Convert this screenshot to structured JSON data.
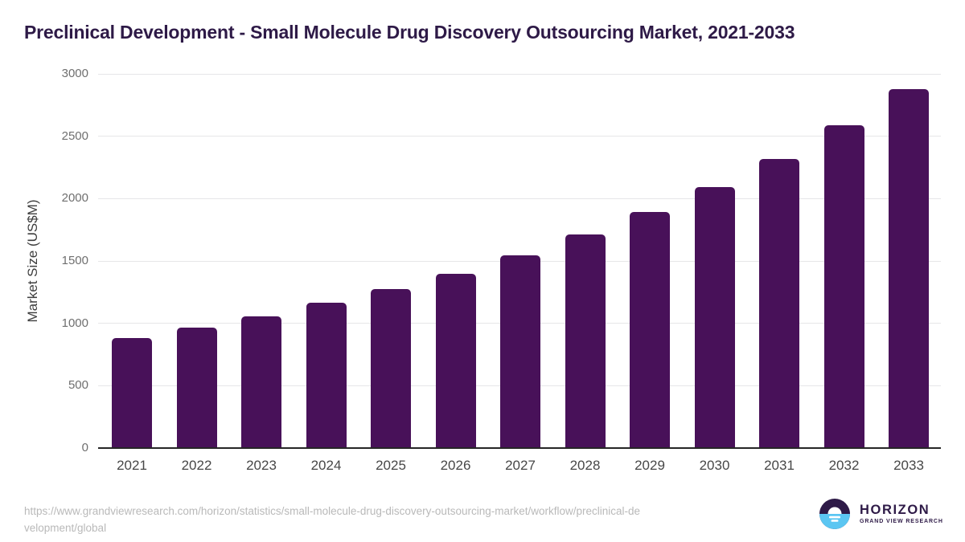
{
  "title": "Preclinical Development - Small Molecule Drug Discovery Outsourcing Market, 2021-2033",
  "chart_data": {
    "type": "bar",
    "title": "Preclinical Development - Small Molecule Drug Discovery Outsourcing Market, 2021-2033",
    "categories": [
      "2021",
      "2022",
      "2023",
      "2024",
      "2025",
      "2026",
      "2027",
      "2028",
      "2029",
      "2030",
      "2031",
      "2032",
      "2033"
    ],
    "values": [
      880,
      965,
      1055,
      1165,
      1275,
      1400,
      1545,
      1710,
      1890,
      2090,
      2320,
      2590,
      2880
    ],
    "xlabel": "",
    "ylabel": "Market Size (US$M)",
    "ylim": [
      0,
      3000
    ],
    "yticks": [
      0,
      500,
      1000,
      1500,
      2000,
      2500,
      3000
    ],
    "grid": true,
    "legend": false,
    "bar_color": "#481159"
  },
  "footer": {
    "source_url_line1": "https://www.grandviewresearch.com/horizon/statistics/small-molecule-drug-discovery-outsourcing-market/workflow/preclinical-de",
    "source_url_line2": "velopment/global"
  },
  "logo": {
    "wordmark": "HORIZON",
    "subtitle": "GRAND VIEW RESEARCH"
  },
  "colors": {
    "bar": "#481159",
    "title_text": "#2e1a47",
    "axis_line": "#262626",
    "gridline": "#e6e6e8",
    "y_tick_text": "#6f6f6f",
    "x_tick_text": "#474747",
    "footer_text": "#b9b9b9",
    "logo_dark": "#2e1a47",
    "logo_blue": "#5bc6f2"
  }
}
